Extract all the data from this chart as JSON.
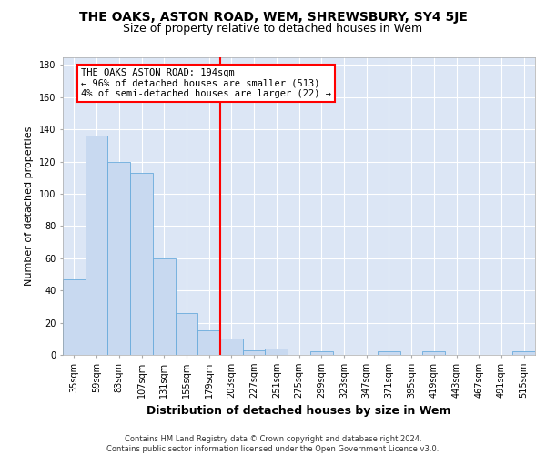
{
  "title": "THE OAKS, ASTON ROAD, WEM, SHREWSBURY, SY4 5JE",
  "subtitle": "Size of property relative to detached houses in Wem",
  "xlabel": "Distribution of detached houses by size in Wem",
  "ylabel": "Number of detached properties",
  "categories": [
    "35sqm",
    "59sqm",
    "83sqm",
    "107sqm",
    "131sqm",
    "155sqm",
    "179sqm",
    "203sqm",
    "227sqm",
    "251sqm",
    "275sqm",
    "299sqm",
    "323sqm",
    "347sqm",
    "371sqm",
    "395sqm",
    "419sqm",
    "443sqm",
    "467sqm",
    "491sqm",
    "515sqm"
  ],
  "values": [
    47,
    136,
    120,
    113,
    60,
    26,
    15,
    10,
    3,
    4,
    0,
    2,
    0,
    0,
    2,
    0,
    2,
    0,
    0,
    0,
    2
  ],
  "bar_color": "#c8d9f0",
  "bar_edge_color": "#6aabdc",
  "vline_index": 6.5,
  "vline_color": "red",
  "annotation_line1": "THE OAKS ASTON ROAD: 194sqm",
  "annotation_line2": "← 96% of detached houses are smaller (513)",
  "annotation_line3": "4% of semi-detached houses are larger (22) →",
  "annotation_box_facecolor": "white",
  "annotation_box_edgecolor": "red",
  "ylim_max": 185,
  "yticks": [
    0,
    20,
    40,
    60,
    80,
    100,
    120,
    140,
    160,
    180
  ],
  "footer_line1": "Contains HM Land Registry data © Crown copyright and database right 2024.",
  "footer_line2": "Contains public sector information licensed under the Open Government Licence v3.0.",
  "title_fontsize": 10,
  "subtitle_fontsize": 9,
  "xlabel_fontsize": 9,
  "ylabel_fontsize": 8,
  "tick_fontsize": 7,
  "annot_fontsize": 7.5,
  "footer_fontsize": 6,
  "plot_bg_color": "#dce6f5",
  "grid_color": "#ffffff"
}
